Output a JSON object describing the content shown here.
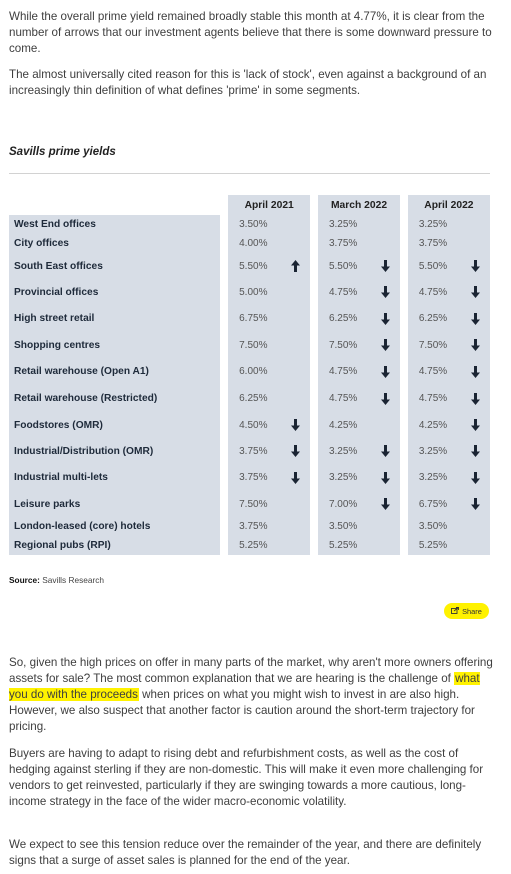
{
  "intro": {
    "p1": "While the overall prime yield remained broadly stable this month at 4.77%, it is clear from the number of arrows that our investment agents believe that there is some downward pressure to come.",
    "p2": "The almost universally cited reason for this is 'lack of stock', even against a background of an increasingly thin definition of what defines 'prime' in some segments."
  },
  "table": {
    "title": "Savills prime yields",
    "columns": [
      "April 2021",
      "March 2022",
      "April 2022"
    ],
    "rows": [
      {
        "label": "West End offices",
        "cells": [
          {
            "v": "3.50%",
            "a": ""
          },
          {
            "v": "3.25%",
            "a": ""
          },
          {
            "v": "3.25%",
            "a": ""
          }
        ]
      },
      {
        "label": "City offices",
        "cells": [
          {
            "v": "4.00%",
            "a": ""
          },
          {
            "v": "3.75%",
            "a": ""
          },
          {
            "v": "3.75%",
            "a": ""
          }
        ]
      },
      {
        "label": "South East offices",
        "cells": [
          {
            "v": "5.50%",
            "a": "up"
          },
          {
            "v": "5.50%",
            "a": "down"
          },
          {
            "v": "5.50%",
            "a": "down"
          }
        ]
      },
      {
        "label": "Provincial offices",
        "cells": [
          {
            "v": "5.00%",
            "a": ""
          },
          {
            "v": "4.75%",
            "a": "down"
          },
          {
            "v": "4.75%",
            "a": "down"
          }
        ]
      },
      {
        "label": "High street retail",
        "cells": [
          {
            "v": "6.75%",
            "a": ""
          },
          {
            "v": "6.25%",
            "a": "down"
          },
          {
            "v": "6.25%",
            "a": "down"
          }
        ]
      },
      {
        "label": "Shopping centres",
        "cells": [
          {
            "v": "7.50%",
            "a": ""
          },
          {
            "v": "7.50%",
            "a": "down"
          },
          {
            "v": "7.50%",
            "a": "down"
          }
        ]
      },
      {
        "label": "Retail warehouse (Open A1)",
        "cells": [
          {
            "v": "6.00%",
            "a": ""
          },
          {
            "v": "4.75%",
            "a": "down"
          },
          {
            "v": "4.75%",
            "a": "down"
          }
        ]
      },
      {
        "label": "Retail warehouse (Restricted)",
        "cells": [
          {
            "v": "6.25%",
            "a": ""
          },
          {
            "v": "4.75%",
            "a": "down"
          },
          {
            "v": "4.75%",
            "a": "down"
          }
        ]
      },
      {
        "label": "Foodstores (OMR)",
        "cells": [
          {
            "v": "4.50%",
            "a": "down"
          },
          {
            "v": "4.25%",
            "a": ""
          },
          {
            "v": "4.25%",
            "a": "down"
          }
        ]
      },
      {
        "label": "Industrial/Distribution (OMR)",
        "cells": [
          {
            "v": "3.75%",
            "a": "down"
          },
          {
            "v": "3.25%",
            "a": "down"
          },
          {
            "v": "3.25%",
            "a": "down"
          }
        ]
      },
      {
        "label": "Industrial multi-lets",
        "cells": [
          {
            "v": "3.75%",
            "a": "down"
          },
          {
            "v": "3.25%",
            "a": "down"
          },
          {
            "v": "3.25%",
            "a": "down"
          }
        ]
      },
      {
        "label": "Leisure parks",
        "cells": [
          {
            "v": "7.50%",
            "a": ""
          },
          {
            "v": "7.00%",
            "a": "down"
          },
          {
            "v": "6.75%",
            "a": "down"
          }
        ]
      },
      {
        "label": "London-leased (core) hotels",
        "cells": [
          {
            "v": "3.75%",
            "a": ""
          },
          {
            "v": "3.50%",
            "a": ""
          },
          {
            "v": "3.50%",
            "a": ""
          }
        ]
      },
      {
        "label": "Regional pubs (RPI)",
        "cells": [
          {
            "v": "5.25%",
            "a": ""
          },
          {
            "v": "5.25%",
            "a": ""
          },
          {
            "v": "5.25%",
            "a": ""
          }
        ]
      }
    ]
  },
  "source": {
    "label": "Source:",
    "text": "Savills Research"
  },
  "share": {
    "label": "Share",
    "icon": "share-icon"
  },
  "body": {
    "p3_before": "So, given the high prices on offer in many parts of the market, why aren't more owners offering assets for sale? The most common explanation that we are hearing is the challenge of ",
    "p3_highlight": "what you do with the proceeds",
    "p3_after": " when prices on what you might wish to invest in are also high. However, we also suspect that another factor is caution around the short-term trajectory for pricing.",
    "p4": "Buyers are having to adapt to rising debt and refurbishment costs, as well as the cost of hedging against sterling if they are non-domestic. This will make it even more challenging for vendors to get reinvested, particularly if they are swinging towards a more cautious, long-income strategy in the face of the wider macro-economic volatility.",
    "p5": "We expect to see this tension reduce over the remainder of the year, and there are definitely signs that a surge of asset sales is planned for the end of the year."
  },
  "colors": {
    "table_bg": "#d7dde6",
    "highlight": "#fff200",
    "arrow": "#1a2433"
  }
}
